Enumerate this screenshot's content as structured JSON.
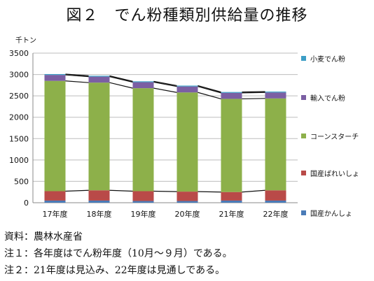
{
  "page": {
    "title": "図２　でん粉種類別供給量の推移",
    "unit": "千トン"
  },
  "notes": [
    "資料：農林水産省",
    "注１：各年度はでん粉年度（10月～９月）である。",
    "注２：21年度は見込み、22年度は見通しである。"
  ],
  "chart_data": {
    "type": "bar",
    "stacked": true,
    "categories": [
      "17年度",
      "18年度",
      "19年度",
      "20年度",
      "21年度",
      "22年度"
    ],
    "ylim": [
      0,
      3500
    ],
    "yticks": [
      0,
      500,
      1000,
      1500,
      2000,
      2500,
      3000,
      3500
    ],
    "grid": true,
    "legend_position": "right",
    "series_lines": true,
    "series": [
      {
        "name": "国産かんしょ",
        "color": "#4a7bb7",
        "values": [
          50,
          50,
          40,
          40,
          50,
          50
        ]
      },
      {
        "name": "国産ばれいしょ",
        "color": "#b94a48",
        "values": [
          220,
          240,
          230,
          220,
          200,
          240
        ]
      },
      {
        "name": "コーンスターチ",
        "color": "#8db04a",
        "values": [
          2580,
          2520,
          2410,
          2320,
          2180,
          2150
        ]
      },
      {
        "name": "輸入でん粉",
        "color": "#7b5fa3",
        "values": [
          140,
          140,
          140,
          140,
          140,
          140
        ]
      },
      {
        "name": "小麦でん粉",
        "color": "#3d9ec6",
        "values": [
          20,
          20,
          20,
          20,
          20,
          20
        ]
      }
    ]
  }
}
